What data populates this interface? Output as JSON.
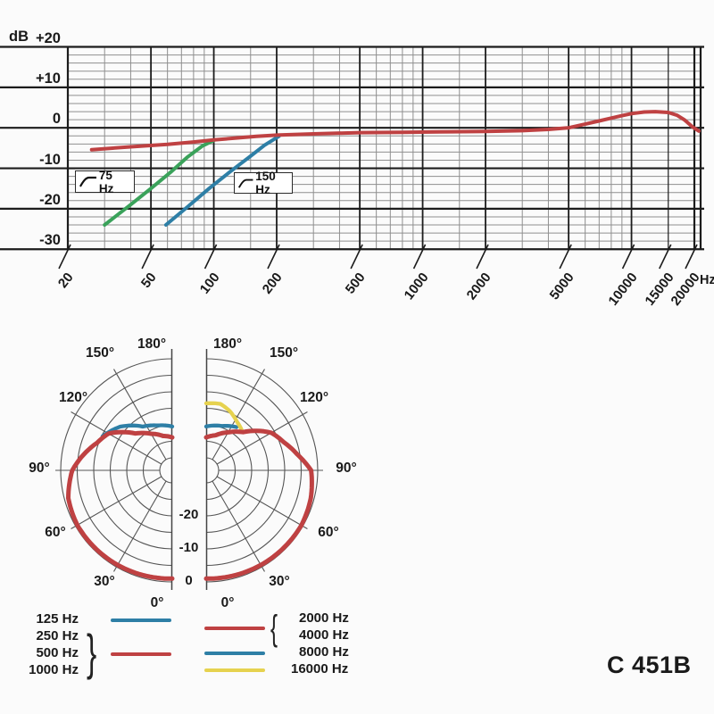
{
  "page": {
    "model": "C 451B"
  },
  "colors": {
    "red": "#bf4142",
    "green": "#3aa25a",
    "blue": "#2e7fa6",
    "yellow": "#e6d24f",
    "grid_minor": "#8f8f8f",
    "grid_major": "#1c1c1c",
    "polar_grid": "#555555"
  },
  "chart_data": [
    {
      "type": "line",
      "title": "frequency response",
      "ylabel": "dB",
      "x_unit": "Hz",
      "y_ticks": [
        "+20",
        "+10",
        "0",
        "-10",
        "-20",
        "-30"
      ],
      "y_tick_values": [
        20,
        10,
        0,
        -10,
        -20,
        -30
      ],
      "y_minor_step_db": 2,
      "x_ticks": [
        "20",
        "50",
        "100",
        "200",
        "500",
        "1000",
        "2000",
        "5000",
        "10000",
        "15000",
        "20000"
      ],
      "x_tick_values": [
        20,
        50,
        100,
        200,
        500,
        1000,
        2000,
        5000,
        10000,
        15000,
        20000
      ],
      "x_minor_values": [
        30,
        40,
        60,
        70,
        80,
        90,
        150,
        300,
        400,
        600,
        700,
        800,
        900,
        1500,
        3000,
        4000,
        6000,
        7000,
        8000,
        9000
      ],
      "x_range_hz": [
        20,
        21500
      ],
      "y_range_db": [
        -30,
        20
      ],
      "grid": true,
      "filters": [
        {
          "label": "75 Hz"
        },
        {
          "label": "150 Hz"
        }
      ],
      "series": [
        {
          "name": "low-cut 75 Hz",
          "color_key": "green",
          "points_hz_db": [
            [
              30,
              -24
            ],
            [
              40,
              -19
            ],
            [
              50,
              -15
            ],
            [
              62,
              -11
            ],
            [
              75,
              -7.2
            ],
            [
              88,
              -4.5
            ],
            [
              100,
              -3.1
            ]
          ]
        },
        {
          "name": "low-cut 150 Hz",
          "color_key": "blue",
          "points_hz_db": [
            [
              59,
              -24
            ],
            [
              75,
              -19.5
            ],
            [
              95,
              -15
            ],
            [
              120,
              -10.8
            ],
            [
              150,
              -7
            ],
            [
              175,
              -4.3
            ],
            [
              205,
              -2.1
            ]
          ]
        },
        {
          "name": "response",
          "color_key": "red",
          "points_hz_db": [
            [
              26,
              -5.4
            ],
            [
              40,
              -4.7
            ],
            [
              60,
              -4.1
            ],
            [
              80,
              -3.5
            ],
            [
              100,
              -3
            ],
            [
              130,
              -2.5
            ],
            [
              160,
              -2.1
            ],
            [
              200,
              -1.8
            ],
            [
              300,
              -1.5
            ],
            [
              500,
              -1.2
            ],
            [
              800,
              -1.1
            ],
            [
              1200,
              -1
            ],
            [
              2000,
              -0.9
            ],
            [
              3000,
              -0.7
            ],
            [
              4000,
              -0.4
            ],
            [
              5000,
              0
            ],
            [
              6000,
              0.9
            ],
            [
              7000,
              1.7
            ],
            [
              8000,
              2.4
            ],
            [
              9000,
              3
            ],
            [
              10000,
              3.5
            ],
            [
              11500,
              3.9
            ],
            [
              13000,
              4
            ],
            [
              15000,
              3.8
            ],
            [
              16500,
              3.1
            ],
            [
              18000,
              1.9
            ],
            [
              19500,
              0.3
            ],
            [
              21000,
              -0.8
            ]
          ]
        }
      ]
    },
    {
      "type": "polar",
      "title": "polar pattern",
      "radial_unit": "dB",
      "radial_ticks": [
        "-20",
        "-10",
        "0"
      ],
      "radial_tick_values": [
        -20,
        -10,
        0
      ],
      "rings_db": [
        0,
        -5,
        -10,
        -15,
        -20,
        -25,
        -30
      ],
      "angle_ticks": [
        "0°",
        "30°",
        "60°",
        "90°",
        "120°",
        "150°",
        "180°"
      ],
      "angle_tick_values": [
        0,
        30,
        60,
        90,
        120,
        150,
        180
      ],
      "halves": {
        "left": {
          "series": [
            {
              "name": "125 Hz",
              "color_key": "blue",
              "points_deg_db": [
                [
                  180,
                  -20.5
                ],
                [
                  162,
                  -19.5
                ],
                [
                  146,
                  -17.8
                ],
                [
                  130,
                  -13.2
                ],
                [
                  116,
                  -10.3
                ]
              ]
            },
            {
              "name": "250-1000 Hz",
              "color_key": "red",
              "points_deg_db": [
                [
                  180,
                  -23.8
                ],
                [
                  165,
                  -23
                ],
                [
                  150,
                  -21
                ],
                [
                  135,
                  -18
                ],
                [
                  120,
                  -11.5
                ],
                [
                  110,
                  -9.5
                ],
                [
                  100,
                  -6.5
                ],
                [
                  90,
                  -3.5
                ],
                [
                  75,
                  -1.2
                ],
                [
                  60,
                  -0.6
                ],
                [
                  30,
                  -0.7
                ],
                [
                  0,
                  -1
                ]
              ]
            }
          ]
        },
        "right": {
          "series": [
            {
              "name": "8000 Hz",
              "color_key": "blue",
              "points_deg_db": [
                [
                  180,
                  -20.5
                ],
                [
                  160,
                  -19.5
                ],
                [
                  145,
                  -17.8
                ]
              ]
            },
            {
              "name": "16000 Hz",
              "color_key": "yellow",
              "points_deg_db": [
                [
                  180,
                  -13.5
                ],
                [
                  168,
                  -13.2
                ],
                [
                  158,
                  -14.5
                ],
                [
                  148,
                  -16.3
                ],
                [
                  137,
                  -17.7
                ]
              ]
            },
            {
              "name": "2000-4000 Hz",
              "color_key": "red",
              "points_deg_db": [
                [
                  180,
                  -23.8
                ],
                [
                  165,
                  -22.8
                ],
                [
                  150,
                  -20.5
                ],
                [
                  136,
                  -17.7
                ],
                [
                  120,
                  -11
                ],
                [
                  110,
                  -8.8
                ],
                [
                  100,
                  -5.8
                ],
                [
                  90,
                  -2
                ],
                [
                  75,
                  -1
                ],
                [
                  60,
                  -0.5
                ],
                [
                  30,
                  -0.7
                ],
                [
                  0,
                  -1
                ]
              ]
            }
          ]
        }
      }
    }
  ],
  "legend": {
    "left": {
      "labels": [
        "125 Hz",
        "250 Hz",
        "500 Hz",
        "1000 Hz"
      ],
      "brace": "}",
      "brace_groups_labels": [
        "250 Hz",
        "500 Hz",
        "1000 Hz"
      ],
      "swatches": [
        {
          "color_key": "blue"
        },
        {
          "color_key": "red"
        }
      ]
    },
    "right": {
      "labels": [
        "2000 Hz",
        "4000 Hz",
        "8000 Hz",
        "16000 Hz"
      ],
      "brace": "{",
      "brace_groups_labels": [
        "2000 Hz",
        "4000 Hz"
      ],
      "swatches": [
        {
          "color_key": "red"
        },
        {
          "color_key": "blue"
        },
        {
          "color_key": "yellow"
        }
      ]
    }
  }
}
